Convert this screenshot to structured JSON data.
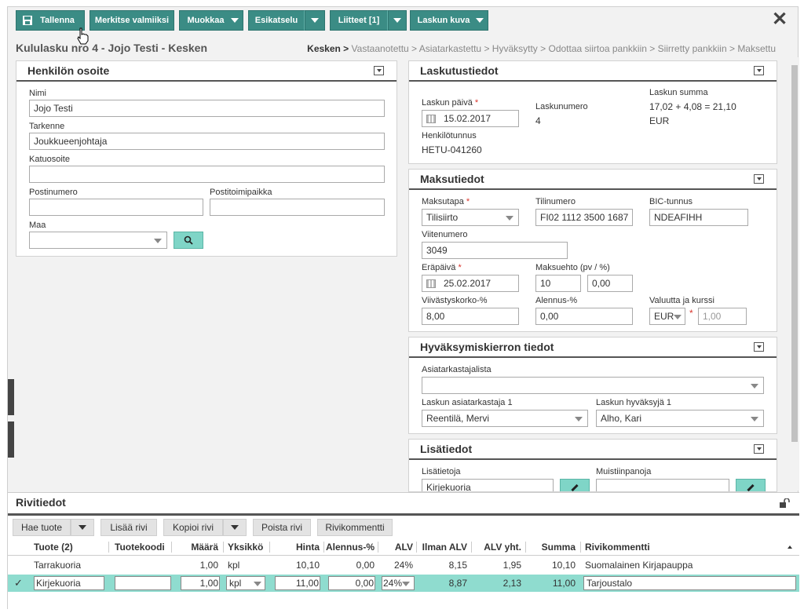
{
  "toolbar": {
    "save_label": "Tallenna",
    "mark_ready_label": "Merkitse valmiiksi",
    "edit_label": "Muokkaa",
    "preview_label": "Esikatselu",
    "attachments_label": "Liitteet [1]",
    "invoice_image_label": "Laskun kuva",
    "close_glyph": "✕"
  },
  "page": {
    "title": "Kululasku nro 4 - Jojo Testi - Kesken",
    "steps": [
      "Kesken >",
      "Vastaanotettu >",
      "Asiatarkastettu >",
      "Hyväksytty >",
      "Odottaa siirtoa pankkiin >",
      "Siirretty pankkiin >",
      "Maksettu"
    ]
  },
  "address": {
    "header": "Henkilön osoite",
    "name_label": "Nimi",
    "name_value": "Jojo Testi",
    "extra_label": "Tarkenne",
    "extra_value": "Joukkueenjohtaja",
    "street_label": "Katuosoite",
    "street_value": "",
    "postal_label": "Postinumero",
    "postal_value": "",
    "city_label": "Postitoimipaikka",
    "city_value": "",
    "country_label": "Maa",
    "country_value": ""
  },
  "billing": {
    "header": "Laskutustiedot",
    "date_label": "Laskun päivä",
    "date_value": "15.02.2017",
    "number_label": "Laskunumero",
    "number_value": "4",
    "sum_label": "Laskun summa",
    "sum_value": "17,02 + 4,08 = 21,10",
    "currency": "EUR",
    "person_id_label": "Henkilötunnus",
    "person_id_value": "HETU-041260"
  },
  "payment": {
    "header": "Maksutiedot",
    "method_label": "Maksutapa",
    "method_value": "Tilisiirto",
    "account_label": "Tilinumero",
    "account_value": "FI02 1112 3500 1687",
    "bic_label": "BIC-tunnus",
    "bic_value": "NDEAFIHH",
    "ref_label": "Viitenumero",
    "ref_value": "3049",
    "due_label": "Eräpäivä",
    "due_value": "25.02.2017",
    "terms_label": "Maksuehto (pv / %)",
    "terms_days": "10",
    "terms_pct": "0,00",
    "interest_label": "Viivästyskorko-%",
    "interest_value": "8,00",
    "discount_label": "Alennus-%",
    "discount_value": "0,00",
    "currency_label": "Valuutta ja kurssi",
    "currency_value": "EUR",
    "rate_value": "1,00"
  },
  "approval": {
    "header": "Hyväksymiskierron tiedot",
    "list_label": "Asiatarkastajalista",
    "list_value": "",
    "checker_label": "Laskun asiatarkastaja 1",
    "checker_value": "Reentilä, Mervi",
    "approver_label": "Laskun hyväksyjä 1",
    "approver_value": "Alho, Kari"
  },
  "extra": {
    "header": "Lisätiedot",
    "info_label": "Lisätietoja",
    "info_value": "Kirjekuoria",
    "notes_label": "Muistiinpanoja",
    "notes_value": ""
  },
  "rows": {
    "header": "Rivitiedot",
    "buttons": {
      "get_product": "Hae tuote",
      "add_row": "Lisää rivi",
      "copy_row": "Kopioi rivi",
      "delete_row": "Poista rivi",
      "row_comments": "Rivikommentti"
    },
    "columns": [
      "Tuote (2)",
      "Tuotekoodi",
      "Määrä",
      "Yksikkö",
      "Hinta",
      "Alennus-%",
      "ALV",
      "Ilman ALV",
      "ALV yht.",
      "Summa",
      "Rivikommentti"
    ],
    "items": [
      {
        "product": "Tarrakuoria",
        "code": "",
        "qty": "1,00",
        "unit": "kpl",
        "price": "10,10",
        "discount": "0,00",
        "vat": "24%",
        "net": "8,15",
        "vat_total": "1,95",
        "sum": "10,10",
        "comment": "Suomalainen Kirjapauppa"
      },
      {
        "product": "Kirjekuoria",
        "code": "",
        "qty": "1,00",
        "unit": "kpl",
        "price": "11,00",
        "discount": "0,00",
        "vat": "24%",
        "net": "8,87",
        "vat_total": "2,13",
        "sum": "11,00",
        "comment": "Tarjoustalo"
      }
    ]
  },
  "colors": {
    "primary": "#3b8c85",
    "accent": "#7fd5c7",
    "selected_row": "#8fdccf",
    "required": "#d9342b"
  }
}
